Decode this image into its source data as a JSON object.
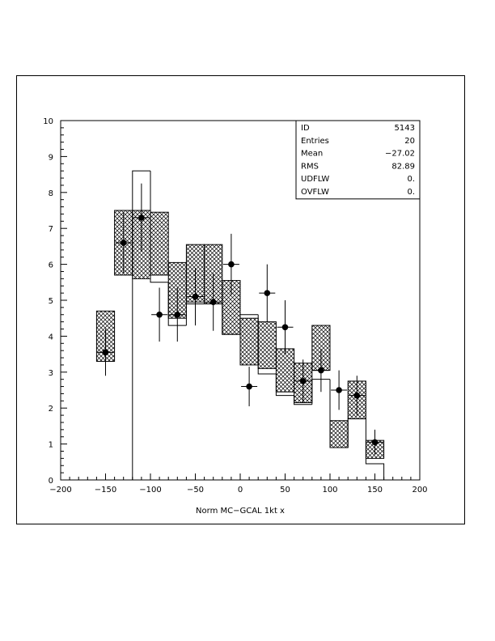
{
  "chart_data": {
    "type": "histogram",
    "xlabel": "Norm MC−GCAL  1kt x",
    "ylabel": "",
    "xlim": [
      -200,
      200
    ],
    "ylim": [
      0,
      10
    ],
    "xticks": [
      -200,
      -150,
      -100,
      -50,
      0,
      50,
      100,
      150,
      200
    ],
    "xtick_labels": [
      "−200",
      "−150",
      "−100",
      "−50",
      "0",
      "50",
      "100",
      "150",
      "200"
    ],
    "yticks": [
      0,
      1,
      2,
      3,
      4,
      5,
      6,
      7,
      8,
      9,
      10
    ],
    "ytick_labels": [
      "0",
      "1",
      "2",
      "3",
      "4",
      "5",
      "6",
      "7",
      "8",
      "9",
      "10"
    ],
    "mc_histogram": {
      "bin_edges": [
        -160,
        -140,
        -120,
        -100,
        -80,
        -60,
        -40,
        -20,
        0,
        20,
        40,
        60,
        80,
        100,
        120,
        140,
        160
      ],
      "values": [
        0,
        0,
        8.6,
        5.5,
        4.3,
        4.9,
        4.9,
        4.05,
        4.6,
        2.95,
        2.35,
        2.1,
        2.8,
        0.9,
        1.7,
        0.45
      ]
    },
    "mc_bands": [
      {
        "x0": -160,
        "x1": -140,
        "lo": 3.3,
        "hi": 4.7
      },
      {
        "x0": -140,
        "x1": -120,
        "lo": 5.7,
        "hi": 7.5
      },
      {
        "x0": -120,
        "x1": -100,
        "lo": 5.6,
        "hi": 7.5
      },
      {
        "x0": -100,
        "x1": -80,
        "lo": 5.7,
        "hi": 7.45
      },
      {
        "x0": -80,
        "x1": -60,
        "lo": 4.5,
        "hi": 6.05
      },
      {
        "x0": -60,
        "x1": -40,
        "lo": 4.95,
        "hi": 6.55
      },
      {
        "x0": -40,
        "x1": -20,
        "lo": 4.9,
        "hi": 6.55
      },
      {
        "x0": -20,
        "x1": 0,
        "lo": 4.05,
        "hi": 5.55
      },
      {
        "x0": 0,
        "x1": 20,
        "lo": 3.2,
        "hi": 4.5
      },
      {
        "x0": 20,
        "x1": 40,
        "lo": 3.1,
        "hi": 4.4
      },
      {
        "x0": 40,
        "x1": 60,
        "lo": 2.45,
        "hi": 3.65
      },
      {
        "x0": 60,
        "x1": 80,
        "lo": 2.15,
        "hi": 3.25
      },
      {
        "x0": 80,
        "x1": 100,
        "lo": 3.05,
        "hi": 4.3
      },
      {
        "x0": 100,
        "x1": 120,
        "lo": 0.9,
        "hi": 1.65
      },
      {
        "x0": 120,
        "x1": 140,
        "lo": 1.7,
        "hi": 2.75
      },
      {
        "x0": 140,
        "x1": 160,
        "lo": 0.6,
        "hi": 1.1
      }
    ],
    "data_points": [
      {
        "x": -150,
        "y": 3.55,
        "err": 0.65
      },
      {
        "x": -130,
        "y": 6.6,
        "err": 0.85
      },
      {
        "x": -110,
        "y": 7.3,
        "err": 0.95
      },
      {
        "x": -90,
        "y": 4.6,
        "err": 0.75
      },
      {
        "x": -70,
        "y": 4.6,
        "err": 0.75
      },
      {
        "x": -50,
        "y": 5.1,
        "err": 0.8
      },
      {
        "x": -30,
        "y": 4.95,
        "err": 0.8
      },
      {
        "x": -10,
        "y": 6.0,
        "err": 0.85
      },
      {
        "x": 10,
        "y": 2.6,
        "err": 0.55
      },
      {
        "x": 30,
        "y": 5.2,
        "err": 0.8
      },
      {
        "x": 50,
        "y": 4.25,
        "err": 0.75
      },
      {
        "x": 70,
        "y": 2.75,
        "err": 0.6
      },
      {
        "x": 90,
        "y": 3.05,
        "err": 0.6
      },
      {
        "x": 110,
        "y": 2.5,
        "err": 0.55
      },
      {
        "x": 130,
        "y": 2.35,
        "err": 0.55
      },
      {
        "x": 150,
        "y": 1.05,
        "err": 0.35
      }
    ]
  },
  "stats_box": {
    "rows": [
      {
        "label": "ID",
        "value": "5143"
      },
      {
        "label": "Entries",
        "value": "20"
      },
      {
        "label": "Mean",
        "value": "−27.02"
      },
      {
        "label": "RMS",
        "value": "82.89"
      },
      {
        "label": "UDFLW",
        "value": "0."
      },
      {
        "label": "OVFLW",
        "value": "0."
      }
    ]
  }
}
